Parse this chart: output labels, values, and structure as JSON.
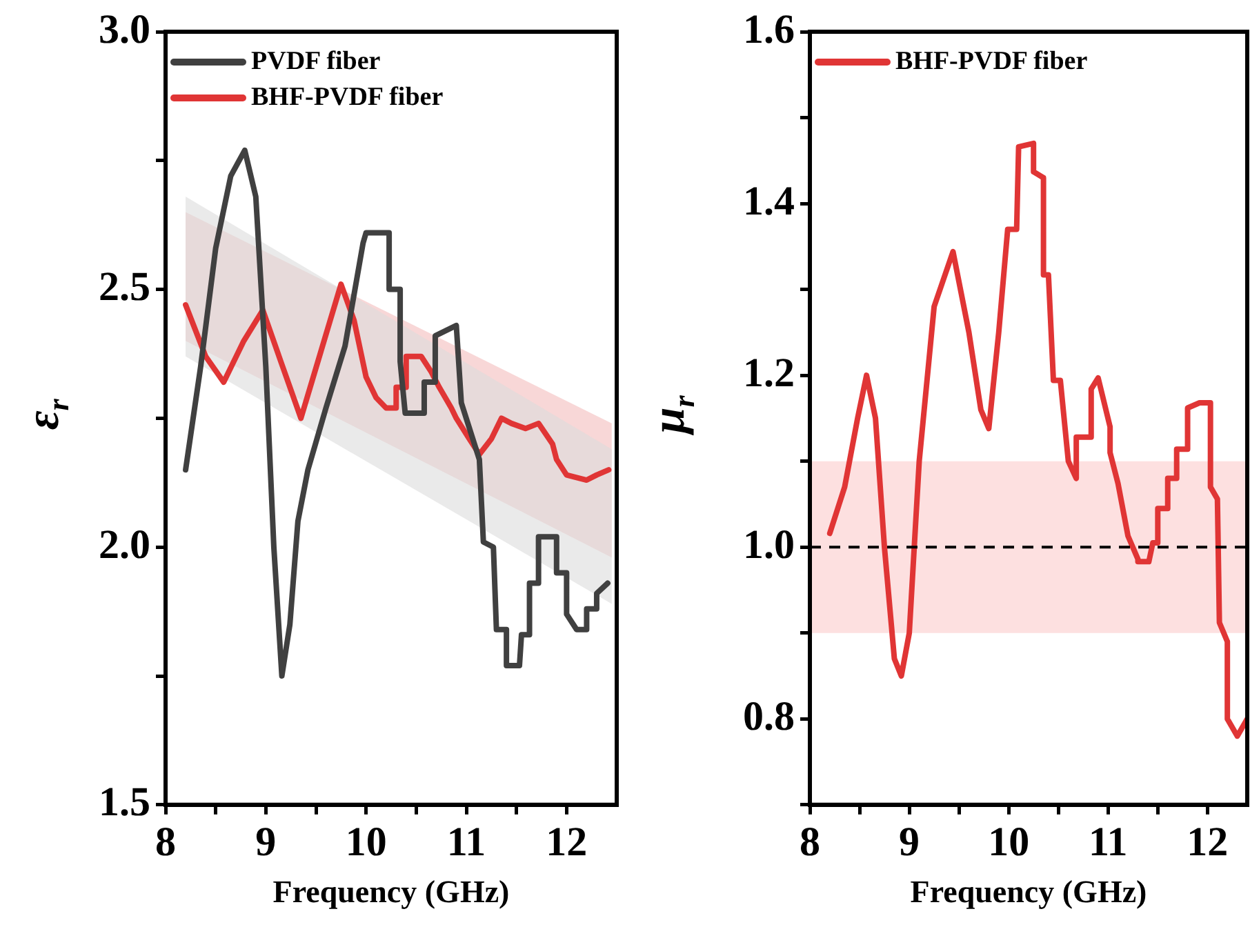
{
  "chart_data": [
    {
      "type": "line",
      "xlabel": "Frequency (GHz)",
      "ylabel": "ε$_{r}$",
      "legend": "top left",
      "xlim": [
        8,
        12.5
      ],
      "xticks": [
        8,
        {
          "value": 8.5,
          "label": null
        },
        9,
        {
          "value": 9.5,
          "label": null
        },
        10,
        {
          "value": 10.5,
          "label": null
        },
        11,
        {
          "value": 11.5,
          "label": null
        },
        12
      ],
      "ylim": [
        1.5,
        3.0
      ],
      "yticks": [
        {
          "value": 1.5,
          "label": "1.5"
        },
        {
          "value": 1.75,
          "label": null
        },
        {
          "value": 2,
          "label": "2.0"
        },
        {
          "value": 2.25,
          "label": null
        },
        {
          "value": 2.5,
          "label": "2.5"
        },
        {
          "value": 2.75,
          "label": null
        },
        {
          "value": 3,
          "label": "3.0"
        }
      ],
      "series": [
        {
          "type": "area",
          "color": "#dcdcdc",
          "x": [
            8.2,
            12.45
          ],
          "values": [
            null,
            null
          ],
          "upper": [
            2.68,
            2.19
          ],
          "lower": [
            2.37,
            1.89
          ]
        },
        {
          "type": "area",
          "color": "#f3bcbc",
          "x": [
            8.2,
            12.45
          ],
          "values": [
            null,
            null
          ],
          "upper": [
            2.65,
            2.24
          ],
          "lower": [
            2.4,
            1.98
          ]
        },
        {
          "name": "PVDF fiber",
          "color": "#404040",
          "x": [
            8.2,
            8.35,
            8.5,
            8.65,
            8.79,
            8.9,
            9.0,
            9.08,
            9.16,
            9.24,
            9.32,
            9.42,
            9.6,
            9.79,
            9.97,
            10.0,
            10.15,
            10.23,
            10.23,
            10.34,
            10.34,
            10.39,
            10.5,
            10.58,
            10.58,
            10.69,
            10.69,
            10.9,
            10.95,
            11.13,
            11.17,
            11.27,
            11.3,
            11.4,
            11.4,
            11.53,
            11.55,
            11.63,
            11.63,
            11.72,
            11.72,
            11.9,
            11.9,
            12.0,
            12.0,
            12.1,
            12.2,
            12.2,
            12.3,
            12.3,
            12.41
          ],
          "values": [
            2.15,
            2.35,
            2.58,
            2.72,
            2.77,
            2.68,
            2.35,
            2.0,
            1.75,
            1.85,
            2.05,
            2.15,
            2.27,
            2.39,
            2.59,
            2.61,
            2.61,
            2.61,
            2.5,
            2.5,
            2.36,
            2.26,
            2.26,
            2.26,
            2.32,
            2.32,
            2.41,
            2.43,
            2.28,
            2.17,
            2.01,
            2.0,
            1.84,
            1.84,
            1.77,
            1.77,
            1.83,
            1.83,
            1.93,
            1.93,
            2.02,
            2.02,
            1.95,
            1.95,
            1.87,
            1.84,
            1.84,
            1.88,
            1.88,
            1.91,
            1.93
          ]
        },
        {
          "name": "BHF-PVDF fiber",
          "color": "#e03535",
          "x": [
            8.2,
            8.4,
            8.58,
            8.78,
            8.97,
            9.15,
            9.35,
            9.55,
            9.75,
            9.88,
            10.0,
            10.1,
            10.2,
            10.3,
            10.3,
            10.4,
            10.4,
            10.55,
            10.65,
            10.73,
            10.85,
            10.9,
            11.03,
            11.13,
            11.25,
            11.35,
            11.45,
            11.59,
            11.72,
            11.86,
            11.9,
            12.0,
            12.2,
            12.3,
            12.42
          ],
          "values": [
            2.47,
            2.37,
            2.32,
            2.4,
            2.46,
            2.36,
            2.25,
            2.38,
            2.51,
            2.44,
            2.33,
            2.29,
            2.27,
            2.27,
            2.31,
            2.31,
            2.37,
            2.37,
            2.34,
            2.31,
            2.27,
            2.25,
            2.21,
            2.18,
            2.21,
            2.25,
            2.24,
            2.23,
            2.24,
            2.2,
            2.17,
            2.14,
            2.13,
            2.14,
            2.15
          ]
        }
      ]
    },
    {
      "type": "line",
      "xlabel": "Frequency (GHz)",
      "ylabel": "μ$_{r}$",
      "legend": "top left",
      "xlim": [
        8,
        12.4
      ],
      "xticks": [
        8,
        {
          "value": 8.5,
          "label": null
        },
        9,
        {
          "value": 9.5,
          "label": null
        },
        10,
        {
          "value": 10.5,
          "label": null
        },
        11,
        {
          "value": 11.5,
          "label": null
        },
        12
      ],
      "ylim": [
        0.7,
        1.6
      ],
      "yticks": [
        {
          "value": 0.7,
          "label": null
        },
        {
          "value": 0.8,
          "label": "0.8"
        },
        {
          "value": 0.9,
          "label": null
        },
        {
          "value": 1,
          "label": "1.0"
        },
        {
          "value": 1.1,
          "label": null
        },
        {
          "value": 1.2,
          "label": "1.2"
        },
        {
          "value": 1.3,
          "label": null
        },
        {
          "value": 1.4,
          "label": "1.4"
        },
        {
          "value": 1.5,
          "label": null
        },
        {
          "value": 1.6,
          "label": "1.6"
        }
      ],
      "bands": [
        {
          "axis": "y",
          "from": 0.9,
          "to": 1.1,
          "color": "#fde0e0"
        }
      ],
      "ref_lines": [
        {
          "axis": "y",
          "value": 1,
          "color": "#000000",
          "line_style": "dashed"
        }
      ],
      "series": [
        {
          "name": "BHF-PVDF fiber",
          "color": "#e03535",
          "x": [
            8.2,
            8.35,
            8.48,
            8.57,
            8.66,
            8.75,
            8.85,
            8.92,
            9.0,
            9.1,
            9.25,
            9.44,
            9.6,
            9.72,
            9.8,
            9.9,
            9.99,
            10.08,
            10.1,
            10.25,
            10.25,
            10.35,
            10.35,
            10.4,
            10.45,
            10.52,
            10.6,
            10.68,
            10.68,
            10.83,
            10.83,
            10.9,
            11.02,
            11.02,
            11.1,
            11.2,
            11.3,
            11.3,
            11.41,
            11.45,
            11.5,
            11.5,
            11.6,
            11.6,
            11.69,
            11.69,
            11.8,
            11.8,
            11.92,
            12.03,
            12.03,
            12.1,
            12.12,
            12.2,
            12.2,
            12.3,
            12.4
          ],
          "values": [
            1.016,
            1.07,
            1.15,
            1.2,
            1.15,
            1.0,
            0.87,
            0.85,
            0.9,
            1.1,
            1.28,
            1.344,
            1.25,
            1.16,
            1.138,
            1.25,
            1.37,
            1.37,
            1.466,
            1.47,
            1.437,
            1.43,
            1.317,
            1.317,
            1.194,
            1.194,
            1.1,
            1.08,
            1.128,
            1.128,
            1.184,
            1.197,
            1.14,
            1.11,
            1.074,
            1.013,
            0.986,
            0.983,
            0.983,
            1.005,
            1.005,
            1.045,
            1.045,
            1.08,
            1.08,
            1.114,
            1.114,
            1.162,
            1.168,
            1.168,
            1.07,
            1.056,
            0.912,
            0.89,
            0.8,
            0.78,
            0.8
          ]
        }
      ]
    }
  ]
}
